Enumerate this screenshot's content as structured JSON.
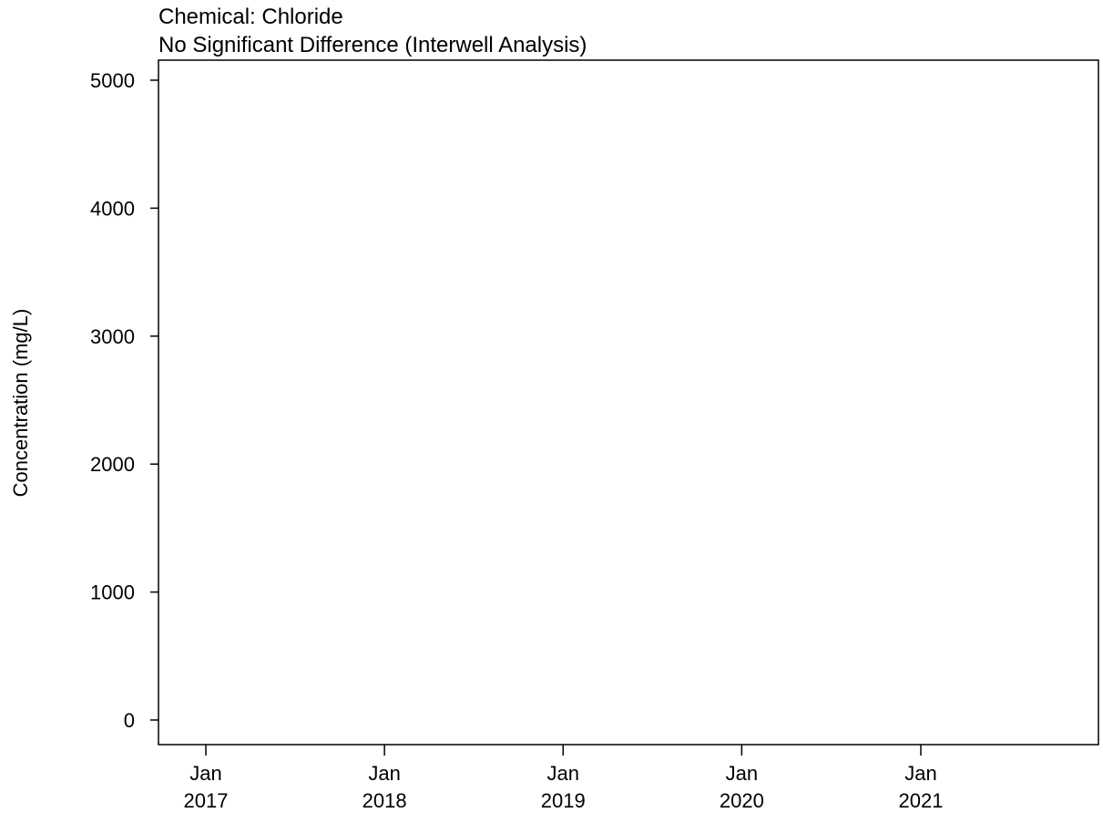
{
  "chart_data": {
    "type": "line",
    "title": "Chemical: Chloride",
    "subtitle": "No Significant Difference (Interwell Analysis)",
    "xlabel": "",
    "ylabel": "Concentration (mg/L)",
    "ylim": [
      -200,
      5150
    ],
    "xlim": [
      "2016-09-01",
      "2021-12-31"
    ],
    "y_ticks": [
      {
        "value": 0,
        "label": "0"
      },
      {
        "value": 1000,
        "label": "1000"
      },
      {
        "value": 2000,
        "label": "2000"
      },
      {
        "value": 3000,
        "label": "3000"
      },
      {
        "value": 4000,
        "label": "4000"
      },
      {
        "value": 5000,
        "label": "5000"
      }
    ],
    "x_ticks": [
      {
        "date": "2017-01-01",
        "label": [
          "Jan",
          "2017"
        ]
      },
      {
        "date": "2018-01-01",
        "label": [
          "Jan",
          "2018"
        ]
      },
      {
        "date": "2019-01-01",
        "label": [
          "Jan",
          "2019"
        ]
      },
      {
        "date": "2020-01-01",
        "label": [
          "Jan",
          "2020"
        ]
      },
      {
        "date": "2021-01-01",
        "label": [
          "Jan",
          "2021"
        ]
      }
    ],
    "grid": false,
    "legend": "none",
    "series": []
  }
}
